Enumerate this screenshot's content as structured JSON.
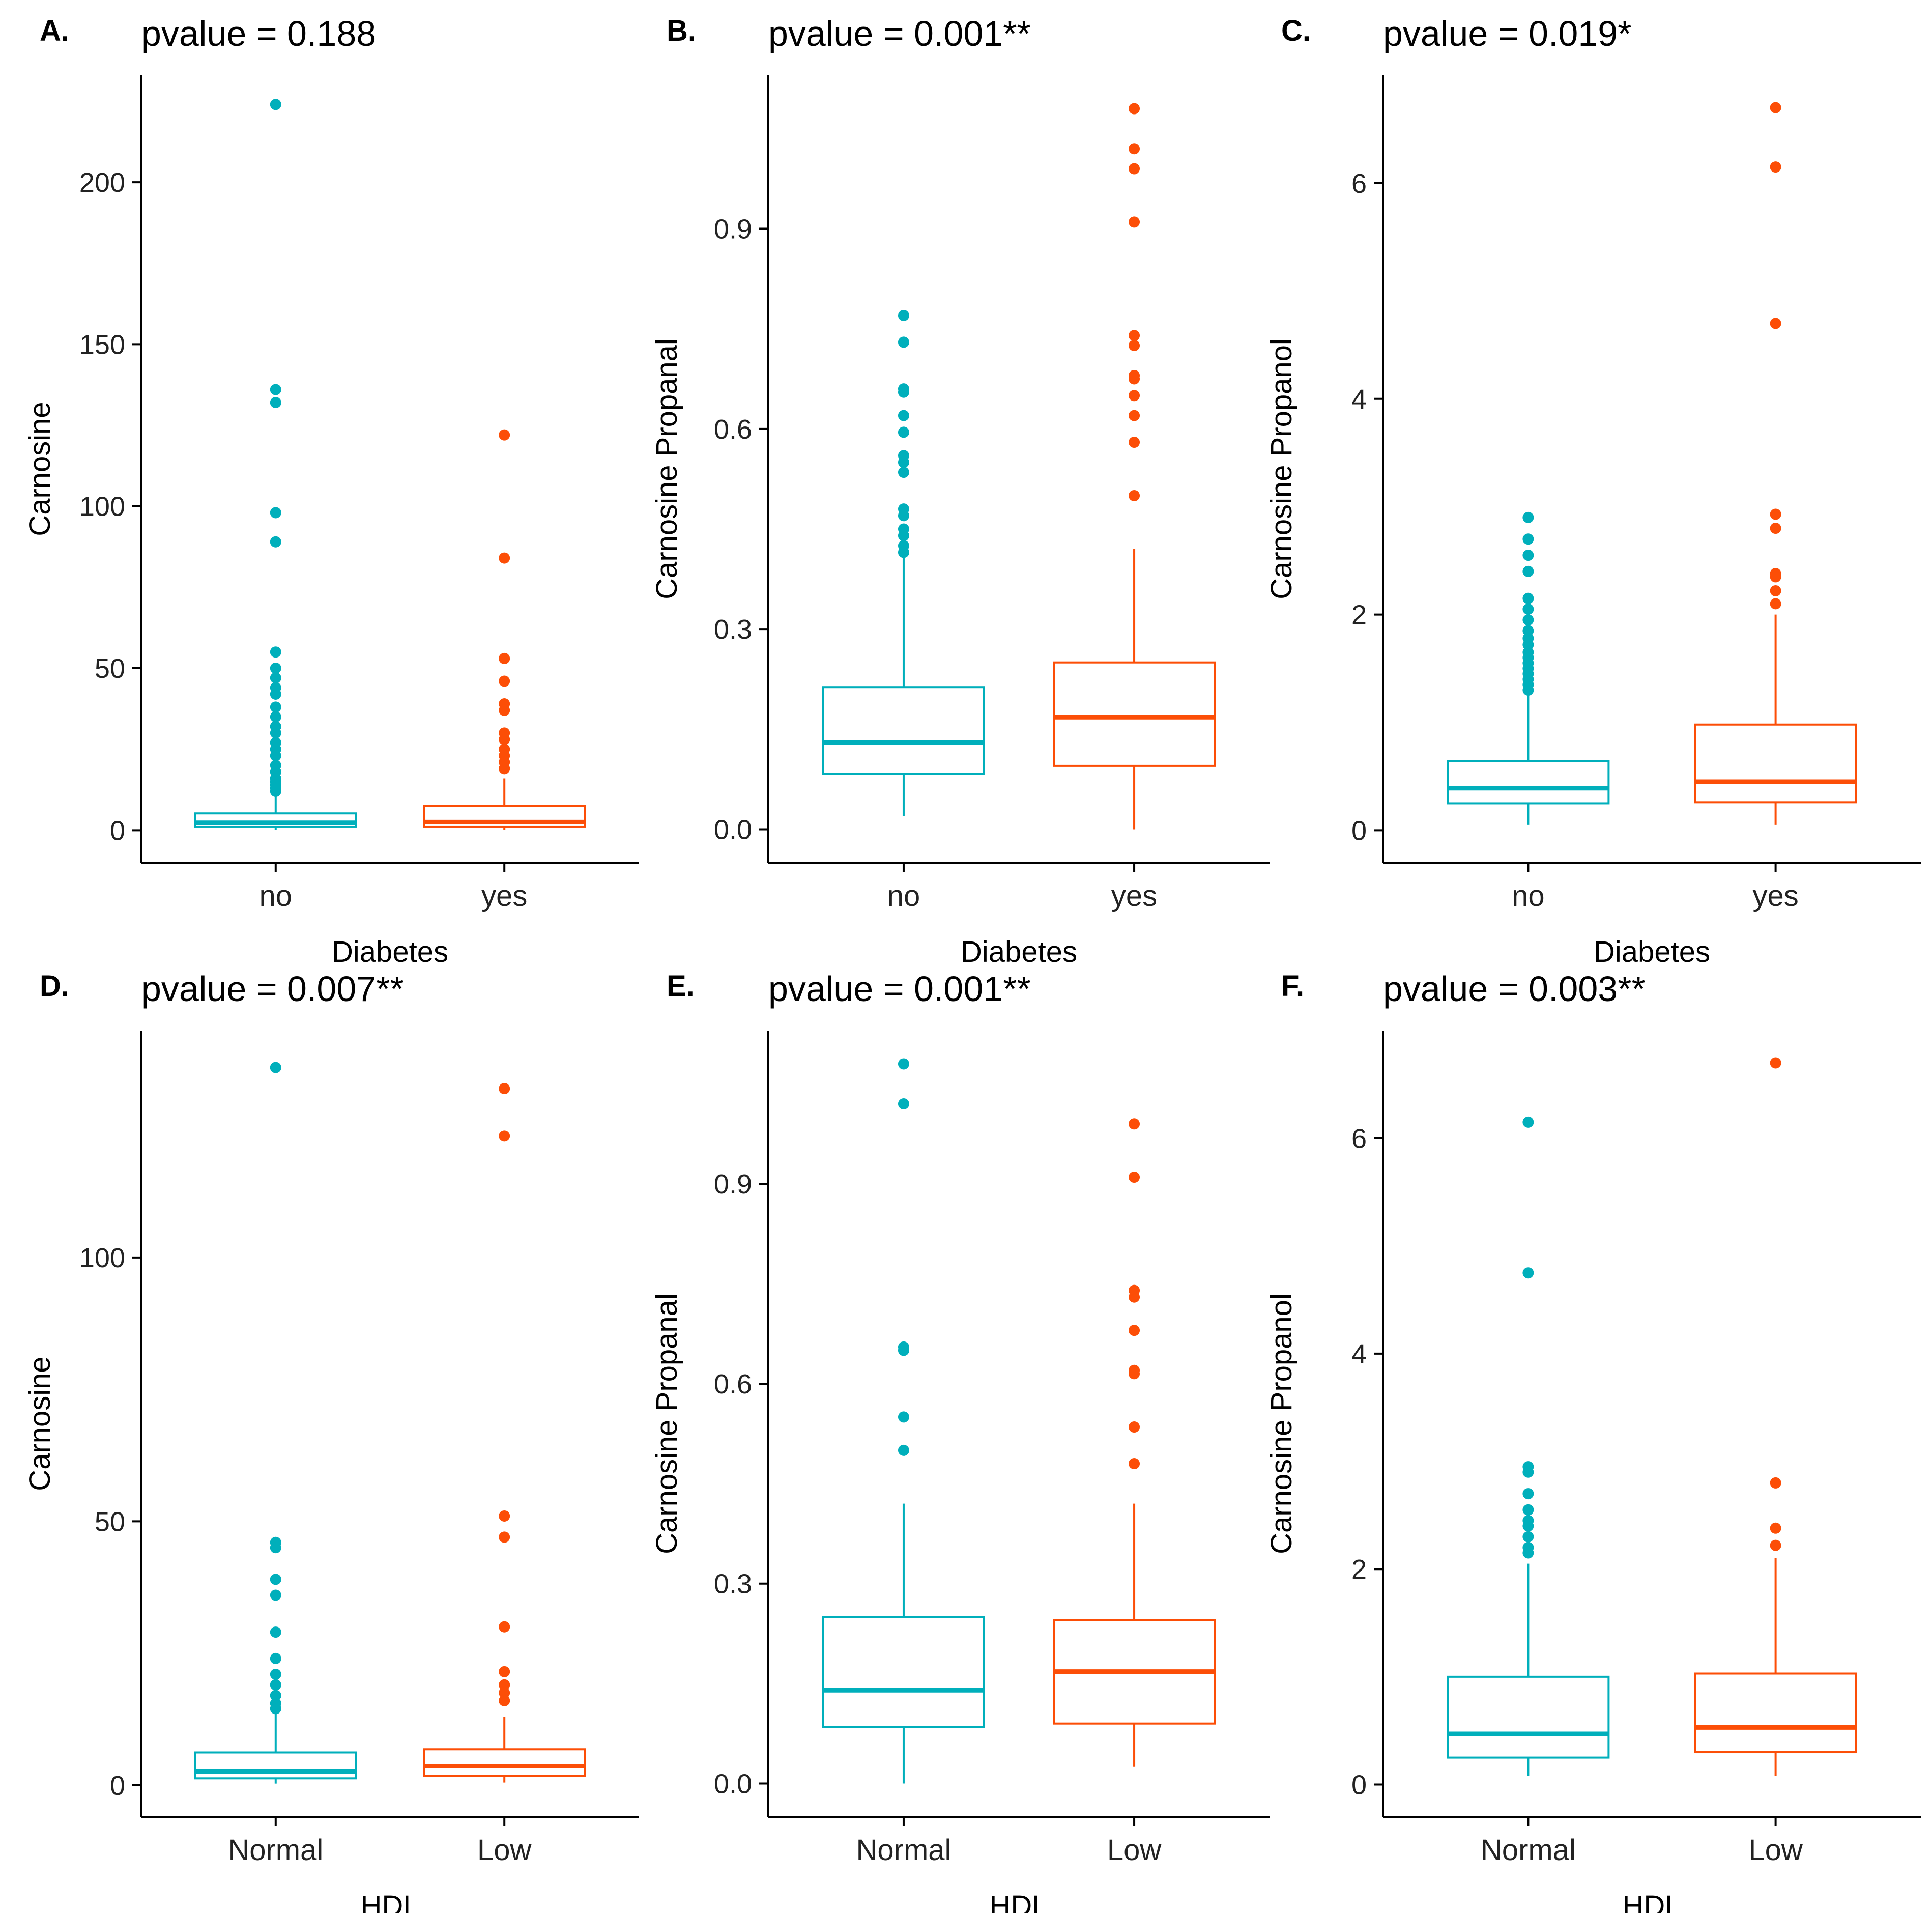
{
  "colors": {
    "group1": "#00AFBB",
    "group2": "#FC4E07",
    "axis": "#000000",
    "text": "#000000"
  },
  "chart_data": [
    {
      "type": "box",
      "panel_label": "A.",
      "title": "pvalue = 0.188",
      "xlabel": "Diabetes",
      "ylabel": "Carnosine",
      "ylim": [
        -10,
        233
      ],
      "yticks": [
        0,
        50,
        100,
        150,
        200
      ],
      "tick_labels": [
        "0",
        "50",
        "100",
        "150",
        "200"
      ],
      "categories": [
        "no",
        "yes"
      ],
      "groups": [
        {
          "name": "no",
          "q1": 1.0,
          "median": 2.3,
          "q3": 5.2,
          "whisker_low": 0.2,
          "whisker_high": 10.5,
          "outliers": [
            224,
            136,
            132,
            98,
            89,
            55,
            50,
            47,
            44,
            42,
            38,
            35,
            32,
            30,
            27,
            25,
            23,
            20,
            18,
            16,
            15,
            14,
            13,
            12
          ]
        },
        {
          "name": "yes",
          "q1": 1.0,
          "median": 2.5,
          "q3": 7.5,
          "whisker_low": 0.2,
          "whisker_high": 16,
          "outliers": [
            122,
            84,
            53,
            46,
            39,
            37,
            30,
            28,
            25,
            23,
            21,
            19
          ]
        }
      ]
    },
    {
      "type": "box",
      "panel_label": "B.",
      "title": "pvalue = 0.001**",
      "xlabel": "Diabetes",
      "ylabel": "Carnosine Propanal",
      "ylim": [
        -0.05,
        1.13
      ],
      "yticks": [
        0.0,
        0.3,
        0.6,
        0.9
      ],
      "tick_labels": [
        "0.0",
        "0.3",
        "0.6",
        "0.9"
      ],
      "categories": [
        "no",
        "yes"
      ],
      "groups": [
        {
          "name": "no",
          "q1": 0.083,
          "median": 0.13,
          "q3": 0.213,
          "whisker_low": 0.02,
          "whisker_high": 0.41,
          "outliers": [
            0.77,
            0.73,
            0.66,
            0.655,
            0.62,
            0.595,
            0.56,
            0.55,
            0.535,
            0.48,
            0.47,
            0.45,
            0.44,
            0.425,
            0.415
          ]
        },
        {
          "name": "yes",
          "q1": 0.095,
          "median": 0.168,
          "q3": 0.25,
          "whisker_low": 0.0,
          "whisker_high": 0.42,
          "outliers": [
            1.08,
            1.02,
            0.99,
            0.91,
            0.74,
            0.725,
            0.68,
            0.675,
            0.65,
            0.62,
            0.58,
            0.5
          ]
        }
      ]
    },
    {
      "type": "box",
      "panel_label": "C.",
      "title": "pvalue = 0.019*",
      "xlabel": "Diabetes",
      "ylabel": "Carnosine Propanol",
      "ylim": [
        -0.3,
        7.0
      ],
      "yticks": [
        0,
        2,
        4,
        6
      ],
      "tick_labels": [
        "0",
        "2",
        "4",
        "6"
      ],
      "categories": [
        "no",
        "yes"
      ],
      "groups": [
        {
          "name": "no",
          "q1": 0.25,
          "median": 0.39,
          "q3": 0.64,
          "whisker_low": 0.05,
          "whisker_high": 1.25,
          "outliers": [
            2.9,
            2.7,
            2.55,
            2.4,
            2.15,
            2.05,
            1.95,
            1.85,
            1.78,
            1.72,
            1.65,
            1.6,
            1.55,
            1.5,
            1.45,
            1.4,
            1.35,
            1.3
          ]
        },
        {
          "name": "yes",
          "q1": 0.26,
          "median": 0.45,
          "q3": 0.98,
          "whisker_low": 0.05,
          "whisker_high": 2.0,
          "outliers": [
            6.7,
            6.15,
            4.7,
            2.93,
            2.8,
            2.38,
            2.35,
            2.22,
            2.1
          ]
        }
      ]
    },
    {
      "type": "box",
      "panel_label": "D.",
      "title": "pvalue = 0.007**",
      "xlabel": "HDL",
      "ylabel": "Carnosine",
      "ylim": [
        -6,
        143
      ],
      "yticks": [
        0,
        50,
        100
      ],
      "tick_labels": [
        "0",
        "50",
        "100"
      ],
      "categories": [
        "Normal",
        "Low"
      ],
      "groups": [
        {
          "name": "Normal",
          "q1": 1.3,
          "median": 2.6,
          "q3": 6.2,
          "whisker_low": 0.3,
          "whisker_high": 14,
          "outliers": [
            136,
            46,
            45,
            39,
            36,
            29,
            24,
            21,
            19,
            17,
            15.5,
            14.5
          ]
        },
        {
          "name": "Low",
          "q1": 1.8,
          "median": 3.6,
          "q3": 6.8,
          "whisker_low": 0.5,
          "whisker_high": 13,
          "outliers": [
            132,
            123,
            51,
            47,
            30,
            21.5,
            19,
            17.5,
            16
          ]
        }
      ]
    },
    {
      "type": "box",
      "panel_label": "E.",
      "title": "pvalue = 0.001**",
      "xlabel": "HDL",
      "ylabel": "Carnosine Propanal",
      "ylim": [
        -0.05,
        1.13
      ],
      "yticks": [
        0.0,
        0.3,
        0.6,
        0.9
      ],
      "tick_labels": [
        "0.0",
        "0.3",
        "0.6",
        "0.9"
      ],
      "categories": [
        "Normal",
        "Low"
      ],
      "groups": [
        {
          "name": "Normal",
          "q1": 0.085,
          "median": 0.14,
          "q3": 0.25,
          "whisker_low": 0.0,
          "whisker_high": 0.42,
          "outliers": [
            1.08,
            1.02,
            0.655,
            0.65,
            0.55,
            0.5
          ]
        },
        {
          "name": "Low",
          "q1": 0.09,
          "median": 0.168,
          "q3": 0.245,
          "whisker_low": 0.025,
          "whisker_high": 0.42,
          "outliers": [
            0.99,
            0.91,
            0.74,
            0.73,
            0.68,
            0.62,
            0.615,
            0.535,
            0.48
          ]
        }
      ]
    },
    {
      "type": "box",
      "panel_label": "F.",
      "title": "pvalue = 0.003**",
      "xlabel": "HDL",
      "ylabel": "Carnosine Propanol",
      "ylim": [
        -0.3,
        7.0
      ],
      "yticks": [
        0,
        2,
        4,
        6
      ],
      "tick_labels": [
        "0",
        "2",
        "4",
        "6"
      ],
      "categories": [
        "Normal",
        "Low"
      ],
      "groups": [
        {
          "name": "Normal",
          "q1": 0.25,
          "median": 0.47,
          "q3": 1.0,
          "whisker_low": 0.08,
          "whisker_high": 2.05,
          "outliers": [
            6.15,
            4.75,
            2.95,
            2.9,
            2.7,
            2.55,
            2.45,
            2.4,
            2.3,
            2.2,
            2.15
          ]
        },
        {
          "name": "Low",
          "q1": 0.3,
          "median": 0.53,
          "q3": 1.03,
          "whisker_low": 0.08,
          "whisker_high": 2.1,
          "outliers": [
            6.7,
            2.8,
            2.38,
            2.22
          ]
        }
      ]
    }
  ]
}
